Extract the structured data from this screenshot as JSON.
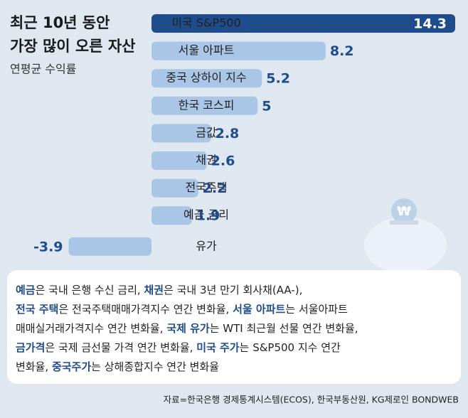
{
  "chart_data": {
    "type": "hbar",
    "title": [
      "최근 10년 동안",
      "가장 많이 오른 자산"
    ],
    "subtitle": "연평균 수익률",
    "categories": [
      "미국 S&P500",
      "서울 아파트",
      "중국 상하이 지수",
      "한국 코스피",
      "금값",
      "채권",
      "전국주택",
      "예금 금리",
      "유가"
    ],
    "values": [
      14.3,
      8.2,
      5.2,
      5,
      2.8,
      2.6,
      2.2,
      1.9,
      -3.9
    ],
    "color": "#a9c6e6",
    "highlight_color": "#1f4d8c",
    "note": [
      [
        {
          "text": "예금",
          "em": true
        },
        {
          "text": "은 국내 은행 수신 금리, "
        },
        {
          "text": "채권",
          "em": true
        },
        {
          "text": "은 국내 3년 만기 회사채(AA-),"
        }
      ],
      [
        {
          "text": "전국 주택",
          "em": true
        },
        {
          "text": "은 전국주택매매가격지수 연간 변화율, "
        },
        {
          "text": "서울 아파트",
          "em": true
        },
        {
          "text": "는 서울아파트"
        }
      ],
      [
        {
          "text": "매매실거래가격지수 연간 변화율, "
        },
        {
          "text": "국제 유가",
          "em": true
        },
        {
          "text": "는 WTI 최근월 선물 연간 변화율,"
        }
      ],
      [
        {
          "text": "금가격",
          "em": true
        },
        {
          "text": "은 국제 금선물 가격 연간 변화율, "
        },
        {
          "text": "미국 주가",
          "em": true
        },
        {
          "text": "는 S&P500 지수 연간"
        }
      ],
      [
        {
          "text": "변화율, "
        },
        {
          "text": "중국주가",
          "em": true
        },
        {
          "text": "는 상해종합지수 연간 변화율"
        }
      ]
    ],
    "source": "자료=한국은행 경제통계시스템(ECOS), 한국부동산원, KG제로인 BONDWEB"
  }
}
